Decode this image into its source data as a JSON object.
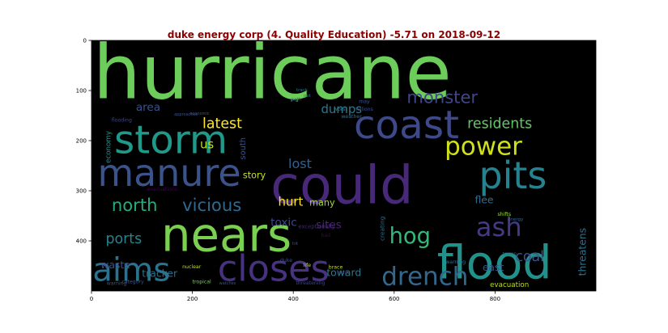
{
  "title": "duke energy corp (4. Quality Education) -5.71 on 2018-09-12",
  "chart_data": {
    "type": "wordcloud",
    "title": "duke energy corp (4. Quality Education) -5.71 on 2018-09-12",
    "background": "#000000",
    "title_color": "#8b0000",
    "xlim": [
      0,
      1000
    ],
    "ylim": [
      500,
      0
    ],
    "x_ticks": [
      0,
      200,
      400,
      600,
      800
    ],
    "y_ticks": [
      0,
      100,
      200,
      300,
      400
    ],
    "words": [
      {
        "text": "hurricane",
        "x": 3,
        "y": 115,
        "size": 150,
        "color": "#6ccd5a"
      },
      {
        "text": "storm",
        "x": 45,
        "y": 225,
        "size": 78,
        "color": "#1f9a8a"
      },
      {
        "text": "coast",
        "x": 520,
        "y": 195,
        "size": 78,
        "color": "#3e4989"
      },
      {
        "text": "manure",
        "x": 12,
        "y": 290,
        "size": 74,
        "color": "#3b528b"
      },
      {
        "text": "could",
        "x": 355,
        "y": 325,
        "size": 105,
        "color": "#482878"
      },
      {
        "text": "pits",
        "x": 768,
        "y": 295,
        "size": 74,
        "color": "#26828e"
      },
      {
        "text": "nears",
        "x": 138,
        "y": 420,
        "size": 93,
        "color": "#7ad151"
      },
      {
        "text": "flood",
        "x": 685,
        "y": 475,
        "size": 92,
        "color": "#21918c"
      },
      {
        "text": "closes",
        "x": 250,
        "y": 480,
        "size": 72,
        "color": "#46327e"
      },
      {
        "text": "aims",
        "x": 2,
        "y": 480,
        "size": 65,
        "color": "#2c728e"
      },
      {
        "text": "power",
        "x": 700,
        "y": 228,
        "size": 50,
        "color": "#d0e11c"
      },
      {
        "text": "drench",
        "x": 575,
        "y": 488,
        "size": 50,
        "color": "#31688e"
      },
      {
        "text": "hog",
        "x": 590,
        "y": 405,
        "size": 44,
        "color": "#35b779"
      },
      {
        "text": "ash",
        "x": 762,
        "y": 390,
        "size": 52,
        "color": "#443983"
      },
      {
        "text": "vicious",
        "x": 180,
        "y": 340,
        "size": 34,
        "color": "#31688e"
      },
      {
        "text": "north",
        "x": 40,
        "y": 340,
        "size": 34,
        "color": "#25ab82"
      },
      {
        "text": "ports",
        "x": 28,
        "y": 405,
        "size": 28,
        "color": "#26828e"
      },
      {
        "text": "monster",
        "x": 625,
        "y": 125,
        "size": 34,
        "color": "#404688"
      },
      {
        "text": "residents",
        "x": 745,
        "y": 175,
        "size": 28,
        "color": "#5ec962"
      },
      {
        "text": "latest",
        "x": 220,
        "y": 175,
        "size": 28,
        "color": "#fde725"
      },
      {
        "text": "dumps",
        "x": 455,
        "y": 145,
        "size": 24,
        "color": "#2a788e"
      },
      {
        "text": "area",
        "x": 88,
        "y": 140,
        "size": 22,
        "color": "#3b528b"
      },
      {
        "text": "us",
        "x": 215,
        "y": 215,
        "size": 24,
        "color": "#b5de2b"
      },
      {
        "text": "lost",
        "x": 390,
        "y": 255,
        "size": 26,
        "color": "#355f8d"
      },
      {
        "text": "story",
        "x": 300,
        "y": 275,
        "size": 18,
        "color": "#c8e020"
      },
      {
        "text": "many",
        "x": 432,
        "y": 330,
        "size": 18,
        "color": "#a0da39"
      },
      {
        "text": "hurt",
        "x": 370,
        "y": 330,
        "size": 24,
        "color": "#fde725"
      },
      {
        "text": "flee",
        "x": 760,
        "y": 325,
        "size": 20,
        "color": "#2f6c8e"
      },
      {
        "text": "toxic",
        "x": 355,
        "y": 370,
        "size": 22,
        "color": "#3f4788"
      },
      {
        "text": "sites",
        "x": 445,
        "y": 375,
        "size": 22,
        "color": "#482475"
      },
      {
        "text": "coal",
        "x": 840,
        "y": 440,
        "size": 28,
        "color": "#3b528b"
      },
      {
        "text": "east",
        "x": 775,
        "y": 460,
        "size": 20,
        "color": "#3b528b"
      },
      {
        "text": "waste",
        "x": 18,
        "y": 455,
        "size": 20,
        "color": "#3b528b"
      },
      {
        "text": "tracker",
        "x": 100,
        "y": 472,
        "size": 20,
        "color": "#2c728e"
      },
      {
        "text": "toward",
        "x": 466,
        "y": 470,
        "size": 20,
        "color": "#2a788e"
      },
      {
        "text": "evacuation",
        "x": 790,
        "y": 492,
        "size": 14,
        "color": "#bddf26"
      },
      {
        "text": "exceptionally",
        "x": 410,
        "y": 375,
        "size": 11,
        "color": "#482878"
      },
      {
        "text": "creating",
        "x": 580,
        "y": 400,
        "size": 12,
        "color": "#2c728e",
        "rotate": -90
      },
      {
        "text": "threatens",
        "x": 980,
        "y": 470,
        "size": 20,
        "color": "#2c728e",
        "rotate": -90
      },
      {
        "text": "economy",
        "x": 38,
        "y": 245,
        "size": 14,
        "color": "#21918c",
        "rotate": -90
      },
      {
        "text": "south",
        "x": 305,
        "y": 238,
        "size": 16,
        "color": "#3b528b",
        "rotate": -90
      },
      {
        "text": "evacuations",
        "x": 110,
        "y": 300,
        "size": 10,
        "color": "#440154"
      },
      {
        "text": "nuclear",
        "x": 180,
        "y": 455,
        "size": 10,
        "color": "#c2df23"
      },
      {
        "text": "category",
        "x": 60,
        "y": 485,
        "size": 10,
        "color": "#3b528b"
      },
      {
        "text": "tropical",
        "x": 200,
        "y": 485,
        "size": 10,
        "color": "#7ad151"
      },
      {
        "text": "threatening",
        "x": 405,
        "y": 487,
        "size": 10,
        "color": "#414487"
      },
      {
        "text": "warning",
        "x": 30,
        "y": 488,
        "size": 10,
        "color": "#3b528b"
      },
      {
        "text": "flooding",
        "x": 40,
        "y": 162,
        "size": 10,
        "color": "#3e4989"
      },
      {
        "text": "track",
        "x": 406,
        "y": 102,
        "size": 9,
        "color": "#2a788e"
      },
      {
        "text": "get",
        "x": 420,
        "y": 113,
        "size": 9,
        "color": "#2a788e"
      },
      {
        "text": "pig",
        "x": 395,
        "y": 120,
        "size": 10,
        "color": "#6ccd5a"
      },
      {
        "text": "may",
        "x": 530,
        "y": 125,
        "size": 10,
        "color": "#3b528b"
      },
      {
        "text": "worst",
        "x": 480,
        "y": 140,
        "size": 10,
        "color": "#2a788e"
      },
      {
        "text": "millions",
        "x": 520,
        "y": 140,
        "size": 10,
        "color": "#3b528b"
      },
      {
        "text": "weather",
        "x": 495,
        "y": 155,
        "size": 10,
        "color": "#2c728e"
      },
      {
        "text": "path",
        "x": 396,
        "y": 120,
        "size": 9,
        "color": "#3b528b"
      },
      {
        "text": "approaches",
        "x": 164,
        "y": 150,
        "size": 8,
        "color": "#3b528b"
      },
      {
        "text": "economic",
        "x": 195,
        "y": 148,
        "size": 8,
        "color": "#3b528b"
      },
      {
        "text": "shifts",
        "x": 805,
        "y": 350,
        "size": 10,
        "color": "#a0da39"
      },
      {
        "text": "energy",
        "x": 825,
        "y": 360,
        "size": 9,
        "color": "#31688e"
      },
      {
        "text": "bad",
        "x": 455,
        "y": 392,
        "size": 10,
        "color": "#440154"
      },
      {
        "text": "hit",
        "x": 398,
        "y": 408,
        "size": 9,
        "color": "#3b528b"
      },
      {
        "text": "trump",
        "x": 815,
        "y": 428,
        "size": 9,
        "color": "#31688e"
      },
      {
        "text": "warning",
        "x": 702,
        "y": 445,
        "size": 10,
        "color": "#2c728e"
      },
      {
        "text": "duke",
        "x": 374,
        "y": 442,
        "size": 10,
        "color": "#3b528b"
      },
      {
        "text": "life",
        "x": 420,
        "y": 452,
        "size": 10,
        "color": "#bddf26"
      },
      {
        "text": "brace",
        "x": 470,
        "y": 456,
        "size": 10,
        "color": "#c2df23"
      },
      {
        "text": "says",
        "x": 490,
        "y": 466,
        "size": 10,
        "color": "#3b528b"
      },
      {
        "text": "watches",
        "x": 253,
        "y": 487,
        "size": 8,
        "color": "#3b528b"
      }
    ]
  }
}
